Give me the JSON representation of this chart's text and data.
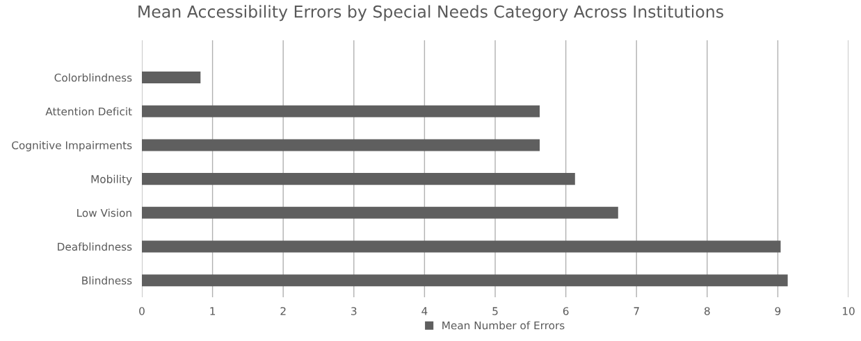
{
  "chart_data": {
    "type": "bar",
    "orientation": "horizontal",
    "title": "Mean Accessibility Errors by Special Needs Category Across Institutions",
    "categories": [
      "Colorblindness",
      "Attention Deficit",
      "Cognitive Impairments",
      "Mobility",
      "Low Vision",
      "Deafblindness",
      "Blindness"
    ],
    "series": [
      {
        "name": "Mean Number of Errors",
        "color": "#5f5f5f",
        "values": [
          0.83,
          5.63,
          5.63,
          6.13,
          6.74,
          9.04,
          9.14
        ]
      }
    ],
    "xlim": [
      0,
      10
    ],
    "xticks": [
      0,
      1,
      2,
      3,
      4,
      5,
      6,
      7,
      8,
      9,
      10
    ],
    "grid": "x",
    "legend": "bottom"
  }
}
